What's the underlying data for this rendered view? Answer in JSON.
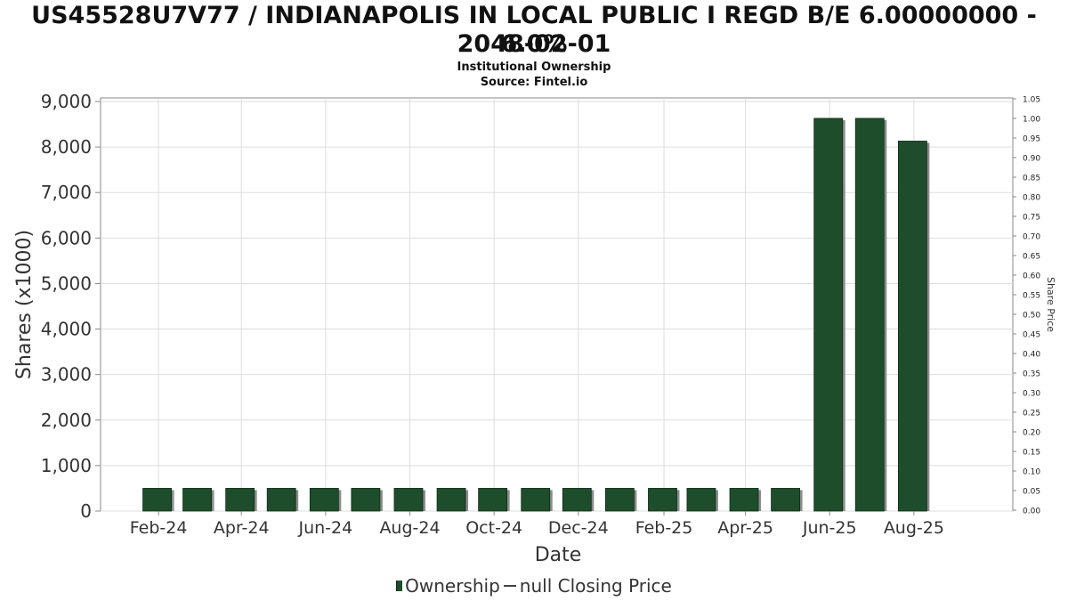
{
  "header": {
    "title_line1": "US45528U7V77 / INDIANAPOLIS IN LOCAL PUBLIC I REGD B/E 6.00000000 - 6.0%",
    "title_line2": "2048-02-01",
    "subtitle": "Institutional Ownership",
    "source": "Source: Fintel.io"
  },
  "legend": {
    "ownership_label": "Ownership",
    "price_label": "null Closing Price"
  },
  "colors": {
    "bar_fill": "#1e4d2b",
    "bar_shadow": "#8c8c8c",
    "grid": "#dddddd",
    "axis": "#888888"
  },
  "chart_data": {
    "type": "bar",
    "title": "US45528U7V77 / INDIANAPOLIS IN LOCAL PUBLIC I REGD B/E 6.00000000 - 6.0% 2048-02-01",
    "xlabel": "Date",
    "ylabel": "Shares (x1000)",
    "y2label": "Share Price",
    "grid": true,
    "legend_position": "bottom",
    "x_tick_labels": [
      "Feb-24",
      "Apr-24",
      "Jun-24",
      "Aug-24",
      "Oct-24",
      "Dec-24",
      "Feb-25",
      "Apr-25",
      "Jun-25",
      "Aug-25"
    ],
    "y_ticks": [
      "0",
      "1,000",
      "2,000",
      "3,000",
      "4,000",
      "5,000",
      "6,000",
      "7,000",
      "8,000",
      "9,000"
    ],
    "y2_ticks": [
      "0.00",
      "0.05",
      "0.10",
      "0.15",
      "0.20",
      "0.25",
      "0.30",
      "0.35",
      "0.40",
      "0.45",
      "0.50",
      "0.55",
      "0.60",
      "0.65",
      "0.70",
      "0.75",
      "0.80",
      "0.85",
      "0.90",
      "0.95",
      "1.00",
      "1.05"
    ],
    "ylim": [
      0,
      9000
    ],
    "y2lim": [
      0,
      1.05
    ],
    "series": [
      {
        "name": "Ownership",
        "x": [
          "2024-01-31",
          "2024-02-29",
          "2024-03-31",
          "2024-04-30",
          "2024-05-31",
          "2024-06-30",
          "2024-07-31",
          "2024-08-31",
          "2024-09-30",
          "2024-10-31",
          "2024-11-30",
          "2024-12-31",
          "2025-01-31",
          "2025-02-28",
          "2025-03-31",
          "2025-04-30",
          "2025-05-31",
          "2025-06-30",
          "2025-07-31"
        ],
        "values": [
          500,
          500,
          500,
          500,
          500,
          500,
          500,
          500,
          500,
          500,
          500,
          500,
          500,
          500,
          500,
          500,
          8630,
          8630,
          8130
        ]
      }
    ]
  }
}
